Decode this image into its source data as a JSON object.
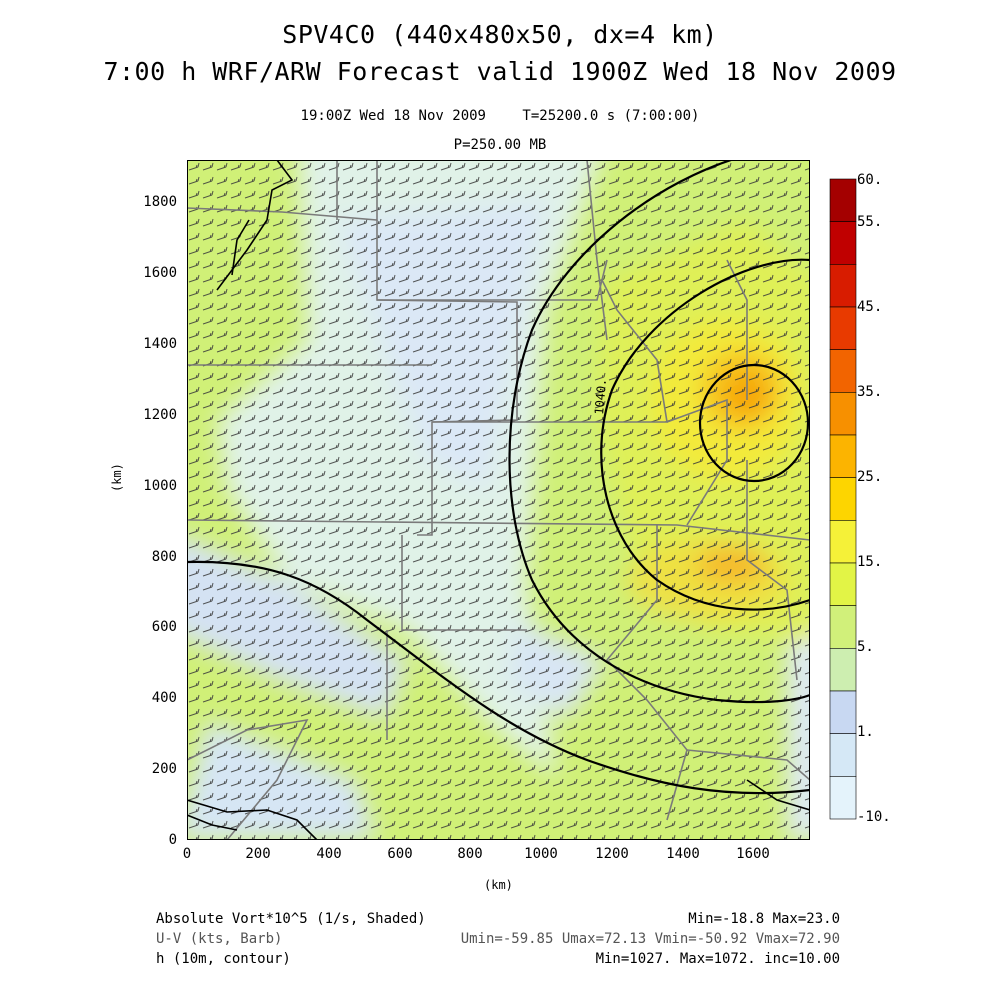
{
  "header": {
    "title": "SPV4C0 (440x480x50, dx=4 km)",
    "forecast": "7:00 h WRF/ARW Forecast valid 1900Z Wed 18 Nov 2009",
    "valid_time": "19:00Z Wed 18 Nov 2009",
    "elapsed": "T=25200.0 s (7:00:00)",
    "level": "P=250.00 MB"
  },
  "axes": {
    "x_label": "(km)",
    "y_label": "(km)",
    "x_ticks": [
      "0",
      "200",
      "400",
      "600",
      "800",
      "1000",
      "1200",
      "1400",
      "1600"
    ],
    "y_ticks": [
      "0",
      "200",
      "400",
      "600",
      "800",
      "1000",
      "1200",
      "1400",
      "1600",
      "1800"
    ],
    "x_range_km": [
      0,
      1760
    ],
    "y_range_km": [
      0,
      1920
    ]
  },
  "colorbar": {
    "labels": [
      "60.",
      "55.",
      "45.",
      "35.",
      "25.",
      "15.",
      "5.",
      "1.",
      "-10."
    ],
    "colors": [
      "#a40000",
      "#c00000",
      "#d81c00",
      "#e83a00",
      "#f26400",
      "#f79000",
      "#fcb400",
      "#fdd500",
      "#f5f138",
      "#e2f446",
      "#d1f07a",
      "#cdeeb0",
      "#c8d8f2",
      "#d5e8f6",
      "#e4f3fb"
    ]
  },
  "map": {
    "contour_label": "1040.",
    "colors": {
      "vort_light": "#d0f077",
      "vort_pale": "#e0f2e8",
      "vort_blue": "#d1e2f4",
      "vort_yellow": "#f5ee3a",
      "vort_orange": "#f7a200",
      "contour": "#000000",
      "border": "#7a7a7a",
      "barb": "#3a3a3a"
    }
  },
  "footer": {
    "field1_name": "Absolute Vort*10^5 (1/s, Shaded)",
    "field1_stats": "Min=-18.8 Max=23.0",
    "field2_name": "U-V (kts, Barb)",
    "field2_stats": "Umin=-59.85 Umax=72.13 Vmin=-50.92 Vmax=72.90",
    "field3_name": "h (10m, contour)",
    "field3_stats": "Min=1027. Max=1072. inc=10.00"
  }
}
